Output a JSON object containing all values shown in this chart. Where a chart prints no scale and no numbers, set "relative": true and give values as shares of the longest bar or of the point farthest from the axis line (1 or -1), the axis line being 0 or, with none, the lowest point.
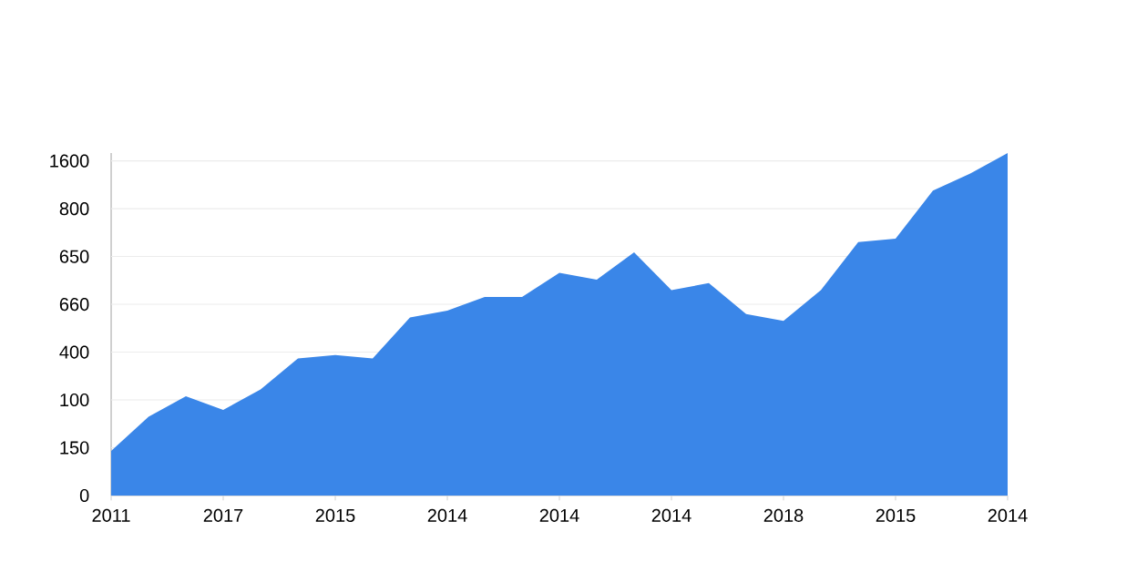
{
  "chart_data": {
    "type": "area",
    "relative": true,
    "color": "#3a86e8",
    "grid": "y",
    "categories": [
      "2011",
      null,
      null,
      "2017",
      null,
      null,
      "2015",
      null,
      null,
      "2014",
      null,
      null,
      "2014",
      null,
      null,
      "2014",
      null,
      null,
      "2018",
      null,
      null,
      "2015",
      null,
      null,
      "2014"
    ],
    "values": [
      0.13,
      0.23,
      0.29,
      0.25,
      0.31,
      0.4,
      0.41,
      0.4,
      0.52,
      0.54,
      0.58,
      0.58,
      0.65,
      0.63,
      0.71,
      0.6,
      0.62,
      0.53,
      0.51,
      0.6,
      0.74,
      0.75,
      0.89,
      0.94,
      1
    ],
    "annotations": [
      "1600",
      "800",
      "650",
      "660",
      "400",
      "100",
      "150",
      "0"
    ]
  }
}
